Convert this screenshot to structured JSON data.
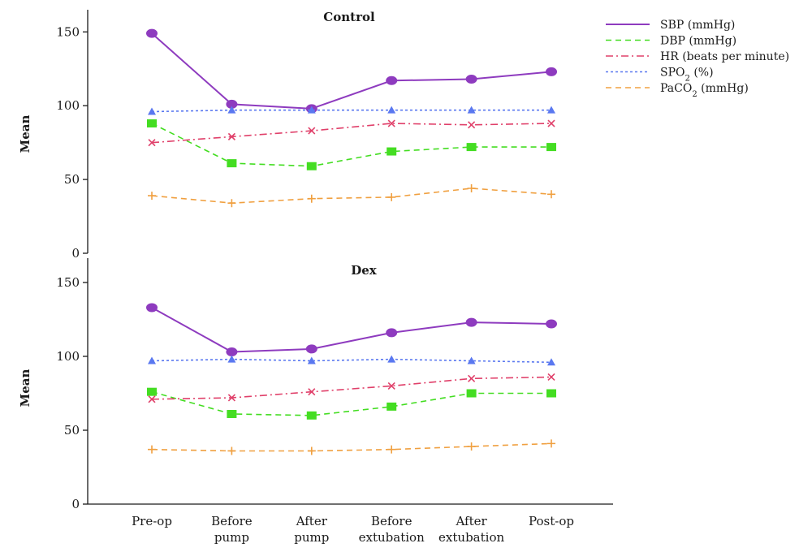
{
  "chart_data": {
    "type": "line",
    "categories": [
      "Pre-op",
      "Before\npump",
      "After\npump",
      "Before\nextubation",
      "After\nextubation",
      "Post-op"
    ],
    "ylabel": "Mean",
    "ylim": [
      0,
      160
    ],
    "y_ticks": [
      0,
      50,
      100,
      150
    ],
    "legend_position": "top-right",
    "series_styles": [
      {
        "color": "#8e3bbf",
        "dash": "solid",
        "marker": "circle"
      },
      {
        "color": "#44dd22",
        "dash": "dash",
        "marker": "square"
      },
      {
        "color": "#e0406a",
        "dash": "dashdot",
        "marker": "x"
      },
      {
        "color": "#5a78f0",
        "dash": "dot",
        "marker": "triangle"
      },
      {
        "color": "#f0a040",
        "dash": "dash",
        "marker": "plus"
      }
    ],
    "legend": [
      {
        "pre": "SBP (mmHg)",
        "sub": "",
        "post": ""
      },
      {
        "pre": "DBP (mmHg)",
        "sub": "",
        "post": ""
      },
      {
        "pre": "HR (beats per minute)",
        "sub": "",
        "post": ""
      },
      {
        "pre": "SPO",
        "sub": "2",
        "post": " (%)"
      },
      {
        "pre": "PaCO",
        "sub": "2",
        "post": " (mmHg)"
      }
    ],
    "panels": [
      {
        "title": "Control",
        "series": [
          {
            "name": "SBP (mmHg)",
            "values": [
              149,
              101,
              98,
              117,
              118,
              123
            ]
          },
          {
            "name": "DBP (mmHg)",
            "values": [
              88,
              61,
              59,
              69,
              72,
              72
            ]
          },
          {
            "name": "HR (beats per minute)",
            "values": [
              75,
              79,
              83,
              88,
              87,
              88
            ]
          },
          {
            "name": "SPO2 (%)",
            "values": [
              96,
              97,
              97,
              97,
              97,
              97
            ]
          },
          {
            "name": "PaCO2 (mmHg)",
            "values": [
              39,
              34,
              37,
              38,
              44,
              40
            ]
          }
        ]
      },
      {
        "title": "Dex",
        "series": [
          {
            "name": "SBP (mmHg)",
            "values": [
              133,
              103,
              105,
              116,
              123,
              122
            ]
          },
          {
            "name": "DBP (mmHg)",
            "values": [
              76,
              61,
              60,
              66,
              75,
              75
            ]
          },
          {
            "name": "HR (beats per minute)",
            "values": [
              71,
              72,
              76,
              80,
              85,
              86
            ]
          },
          {
            "name": "SPO2 (%)",
            "values": [
              97,
              98,
              97,
              98,
              97,
              96
            ]
          },
          {
            "name": "PaCO2 (mmHg)",
            "values": [
              37,
              36,
              36,
              37,
              39,
              41
            ]
          }
        ]
      }
    ]
  }
}
